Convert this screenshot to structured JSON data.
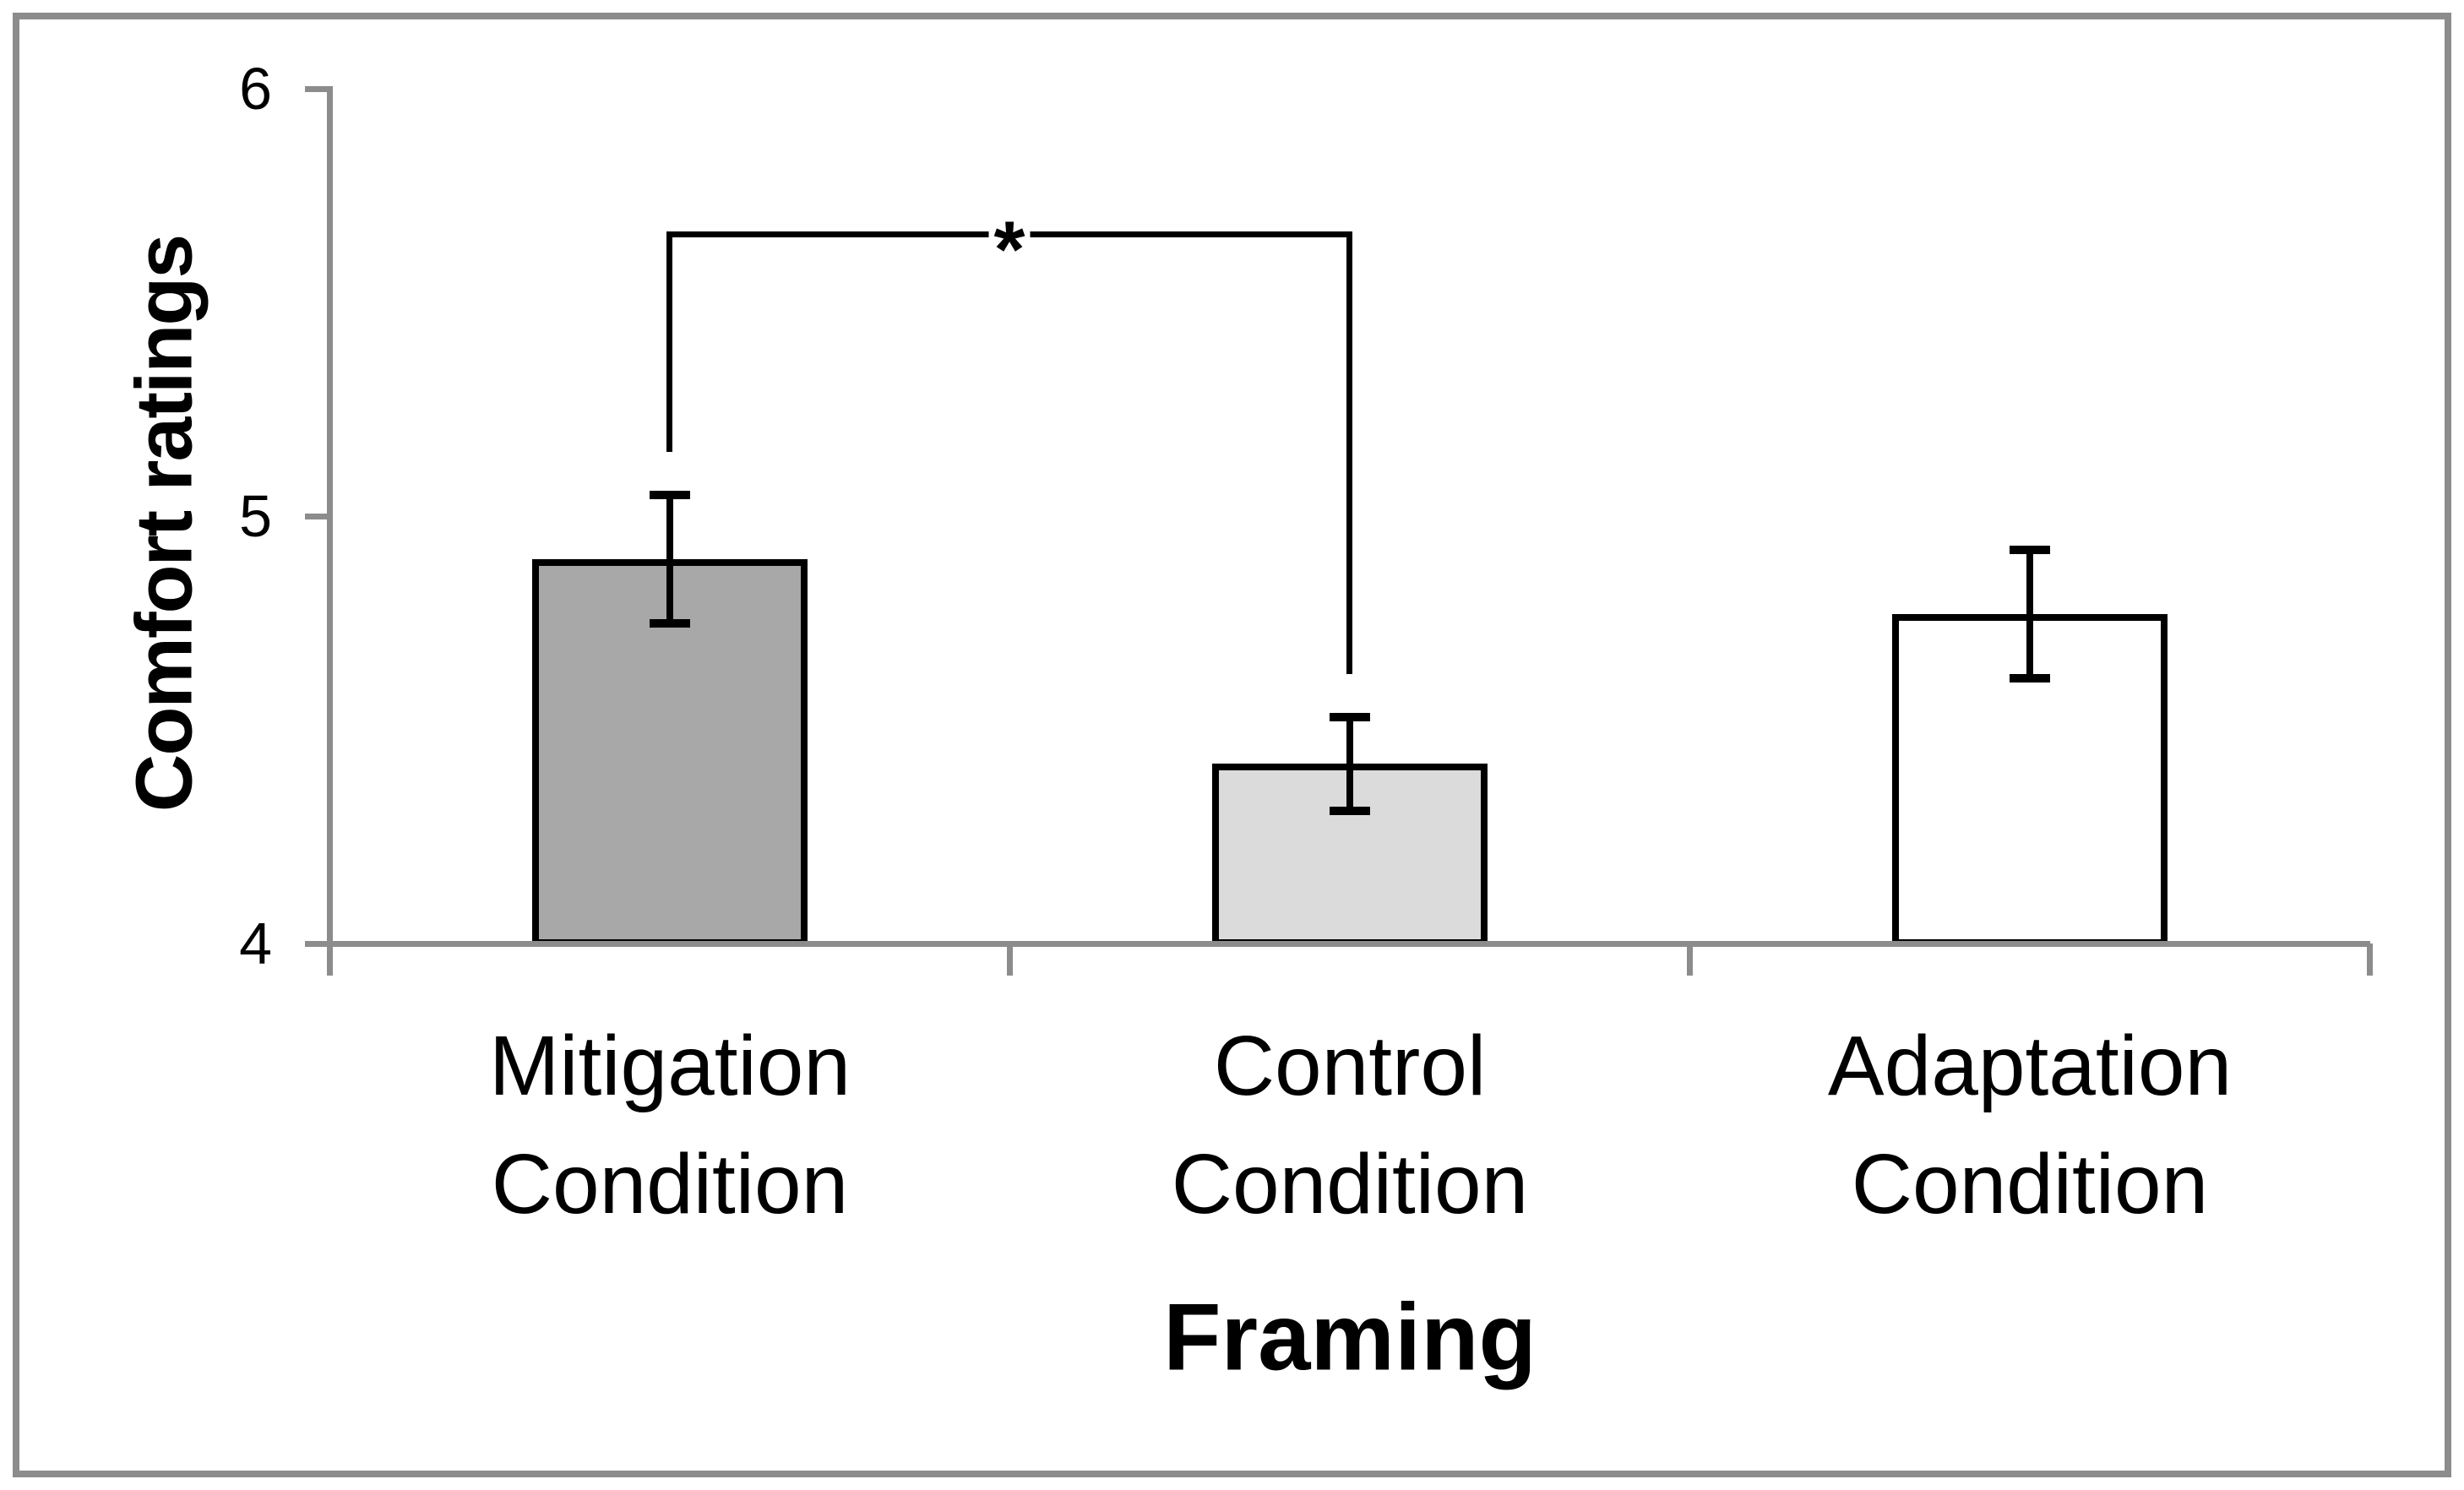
{
  "chart_data": {
    "type": "bar",
    "title": "",
    "xlabel": "Framing",
    "ylabel": "Comfort ratings",
    "ylim": [
      4,
      6
    ],
    "yticks": [
      6,
      5,
      4
    ],
    "grid": false,
    "legend": null,
    "categories": [
      [
        "Mitigation",
        "Condition"
      ],
      [
        "Control",
        "Condition"
      ],
      [
        "Adaptation",
        "Condition"
      ]
    ],
    "values": [
      4.9,
      4.42,
      4.77
    ],
    "errors": [
      0.15,
      0.11,
      0.15
    ],
    "bar_colors": [
      "#a8a8a8",
      "#dbdbdb",
      "#ffffff"
    ],
    "bar_outline_color": "#000000",
    "axis_color": "#8c8c8c",
    "significance": {
      "from_index": 0,
      "to_index": 1,
      "label": "*",
      "bridge_value": 5.66,
      "left_drop_value": 5.15,
      "right_drop_value": 4.63
    }
  },
  "frame": {
    "border_color": "#8c8c8c"
  }
}
